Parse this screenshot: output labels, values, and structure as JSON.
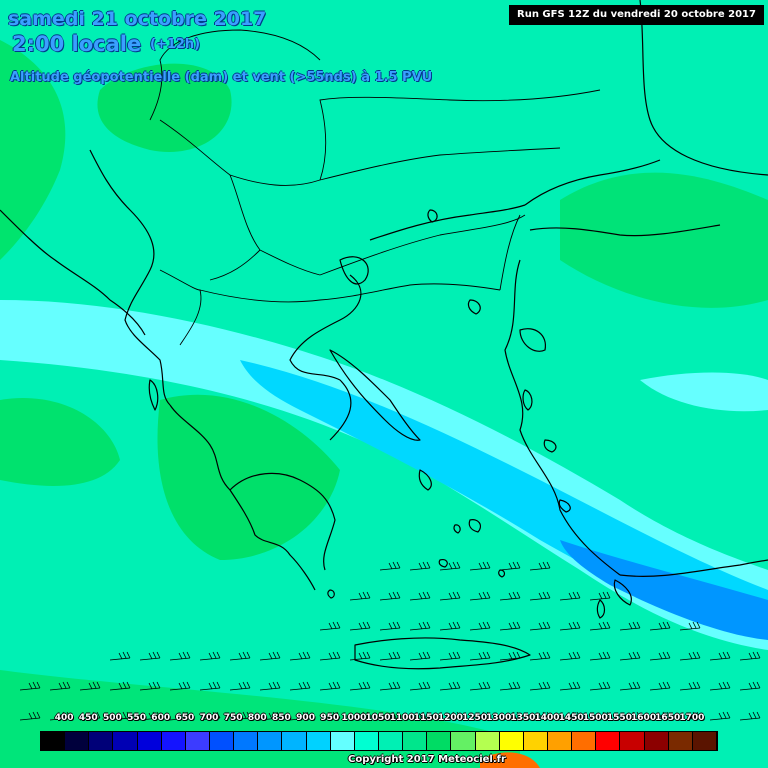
{
  "title": {
    "date": "samedi 21 octobre 2017",
    "time": "2:00 locale",
    "offset": "(+12h)",
    "parameter": "Altitude géopotentielle (dam) et vent (>55nds) à 1.5 PVU"
  },
  "run_label": "Run GFS 12Z du vendredi 20 octobre 2017",
  "legend": {
    "ticks": [
      "400",
      "450",
      "500",
      "550",
      "600",
      "650",
      "700",
      "750",
      "800",
      "850",
      "900",
      "950",
      "1000",
      "1050",
      "1100",
      "1150",
      "1200",
      "1250",
      "1300",
      "1350",
      "1400",
      "1450",
      "1500",
      "1550",
      "1600",
      "1650",
      "1700"
    ],
    "colors": [
      "#000000",
      "#00003c",
      "#000078",
      "#0000b4",
      "#0000dc",
      "#1414ff",
      "#3c3cff",
      "#0050ff",
      "#0078ff",
      "#0096ff",
      "#00b4ff",
      "#00d2ff",
      "#64ffff",
      "#00ffd2",
      "#00f0b4",
      "#00e68c",
      "#00dc64",
      "#64f064",
      "#b4ff50",
      "#ffff00",
      "#ffd200",
      "#ffa000",
      "#ff6e00",
      "#ff0000",
      "#c80000",
      "#8c0000",
      "#7a2a00",
      "#5a1400"
    ]
  },
  "copyright": "Copyright 2017 Meteociel.fr",
  "colors": {
    "background": "#00f0b4",
    "green_zone": "#00e06a",
    "light_cyan": "#66ffff",
    "light_blue": "#00d8ff",
    "blue": "#0096ff",
    "title_text": "#3aa0ff"
  },
  "wind_barbs_note": "wind barbs over southern Aegean and Mediterranean"
}
